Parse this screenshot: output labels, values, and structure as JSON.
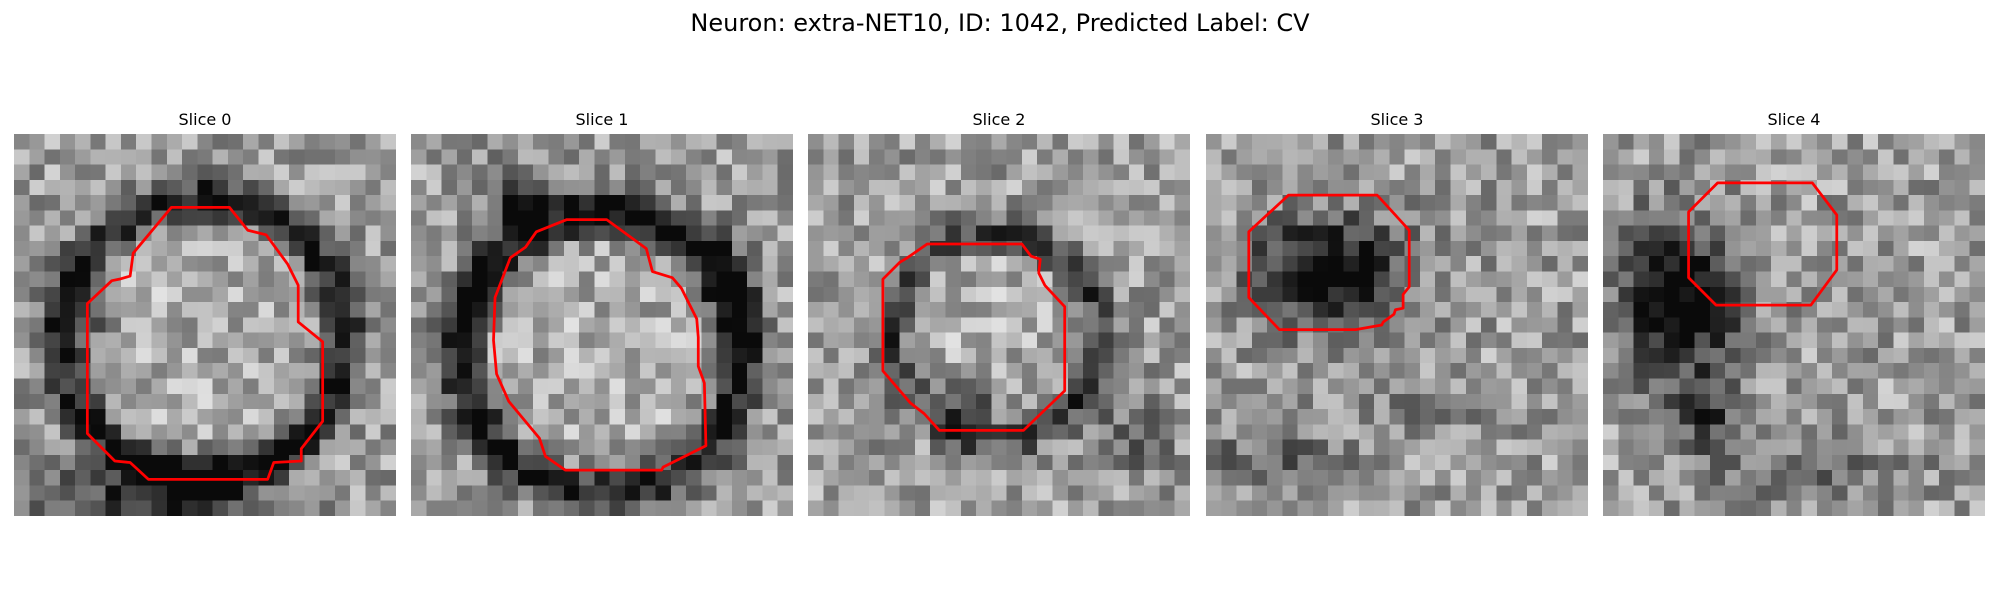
{
  "figure": {
    "title": "Neuron: extra-NET10, ID: 1042, Predicted Label: CV",
    "contour_color": "#ff0000"
  },
  "slices": [
    {
      "title": "Slice 0"
    },
    {
      "title": "Slice 1"
    },
    {
      "title": "Slice 2"
    },
    {
      "title": "Slice 3"
    },
    {
      "title": "Slice 4"
    }
  ]
}
